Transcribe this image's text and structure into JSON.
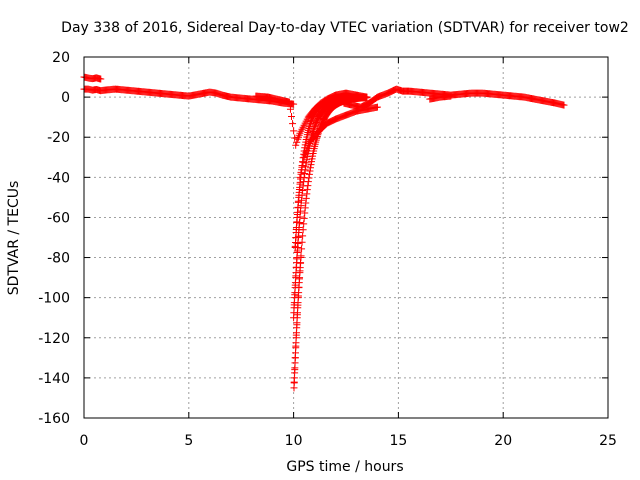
{
  "chart_data": {
    "type": "scatter",
    "title": "Day 338 of 2016, Sidereal Day-to-day VTEC variation (SDTVAR) for receiver tow2",
    "xlabel": "GPS time / hours",
    "ylabel": "SDTVAR / TECUs",
    "xlim": [
      0,
      25
    ],
    "ylim": [
      -160,
      20
    ],
    "xticks": [
      0,
      5,
      10,
      15,
      20,
      25
    ],
    "yticks": [
      -160,
      -140,
      -120,
      -100,
      -80,
      -60,
      -40,
      -20,
      0,
      20
    ],
    "grid": true,
    "marker": "plus",
    "colors": {
      "series": "#ff0000",
      "grid": "#a0a0a0",
      "axis": "#000000"
    },
    "series": [
      {
        "name": "SDTVAR",
        "points": [
          [
            0.0,
            10
          ],
          [
            0.2,
            9.5
          ],
          [
            0.4,
            9.2
          ],
          [
            0.6,
            9.6
          ],
          [
            0.8,
            9.0
          ],
          [
            0.0,
            4
          ],
          [
            0.2,
            4
          ],
          [
            0.4,
            3.5
          ],
          [
            0.6,
            3.8
          ],
          [
            0.8,
            3.2
          ],
          [
            1.0,
            3.5
          ],
          [
            1.5,
            4
          ],
          [
            2.0,
            3.5
          ],
          [
            2.5,
            3
          ],
          [
            3.0,
            2.5
          ],
          [
            3.5,
            2
          ],
          [
            4.0,
            1.5
          ],
          [
            4.5,
            1
          ],
          [
            5.0,
            0.5
          ],
          [
            5.5,
            1.5
          ],
          [
            6.0,
            2.5
          ],
          [
            6.3,
            2
          ],
          [
            6.6,
            1
          ],
          [
            7.0,
            0
          ],
          [
            7.5,
            -0.5
          ],
          [
            8.0,
            -1
          ],
          [
            8.5,
            -1.5
          ],
          [
            9.0,
            -2
          ],
          [
            9.5,
            -3
          ],
          [
            10.0,
            -3.5
          ],
          [
            8.2,
            0.5
          ],
          [
            8.8,
            0
          ],
          [
            9.2,
            -1
          ],
          [
            9.8,
            -2.5
          ],
          [
            10.1,
            -24
          ],
          [
            10.2,
            -21
          ],
          [
            10.3,
            -18
          ],
          [
            10.5,
            -14
          ],
          [
            10.7,
            -10
          ],
          [
            11.0,
            -6
          ],
          [
            11.3,
            -3
          ],
          [
            11.6,
            -1
          ],
          [
            12.0,
            1
          ],
          [
            12.5,
            2
          ],
          [
            13.0,
            1
          ],
          [
            13.5,
            0
          ],
          [
            10.3,
            -40
          ],
          [
            10.5,
            -30
          ],
          [
            10.8,
            -22
          ],
          [
            11.2,
            -17
          ],
          [
            11.6,
            -13
          ],
          [
            12.0,
            -11
          ],
          [
            12.5,
            -9
          ],
          [
            13.0,
            -7
          ],
          [
            13.5,
            -6
          ],
          [
            14.0,
            -5
          ],
          [
            12.4,
            -3
          ],
          [
            12.8,
            -4
          ],
          [
            13.2,
            -5
          ],
          [
            13.6,
            -3
          ],
          [
            14.0,
            0
          ],
          [
            14.5,
            2
          ],
          [
            14.9,
            4
          ],
          [
            15.2,
            3
          ],
          [
            15.5,
            3
          ],
          [
            16.0,
            2.5
          ],
          [
            16.5,
            2
          ],
          [
            17.0,
            1.5
          ],
          [
            17.5,
            1
          ],
          [
            18.0,
            1.5
          ],
          [
            18.5,
            2
          ],
          [
            19.0,
            2
          ],
          [
            19.5,
            1.5
          ],
          [
            20.0,
            1
          ],
          [
            20.5,
            0.5
          ],
          [
            21.0,
            0
          ],
          [
            21.5,
            -1
          ],
          [
            22.0,
            -2
          ],
          [
            22.5,
            -3
          ],
          [
            22.9,
            -4
          ],
          [
            16.5,
            -1
          ],
          [
            17.0,
            0
          ],
          [
            17.5,
            0.5
          ]
        ],
        "dip": {
          "branches": [
            {
              "x0": 10.0,
              "a": 1.8,
              "b": -150.0,
              "y_floor": -145
            },
            {
              "x0": 10.0,
              "a": 2.0,
              "b": -110.0,
              "y_floor": -110
            },
            {
              "x0": 10.05,
              "a": 2.4,
              "b": -80.0,
              "y_floor": -75
            }
          ]
        }
      }
    ]
  }
}
